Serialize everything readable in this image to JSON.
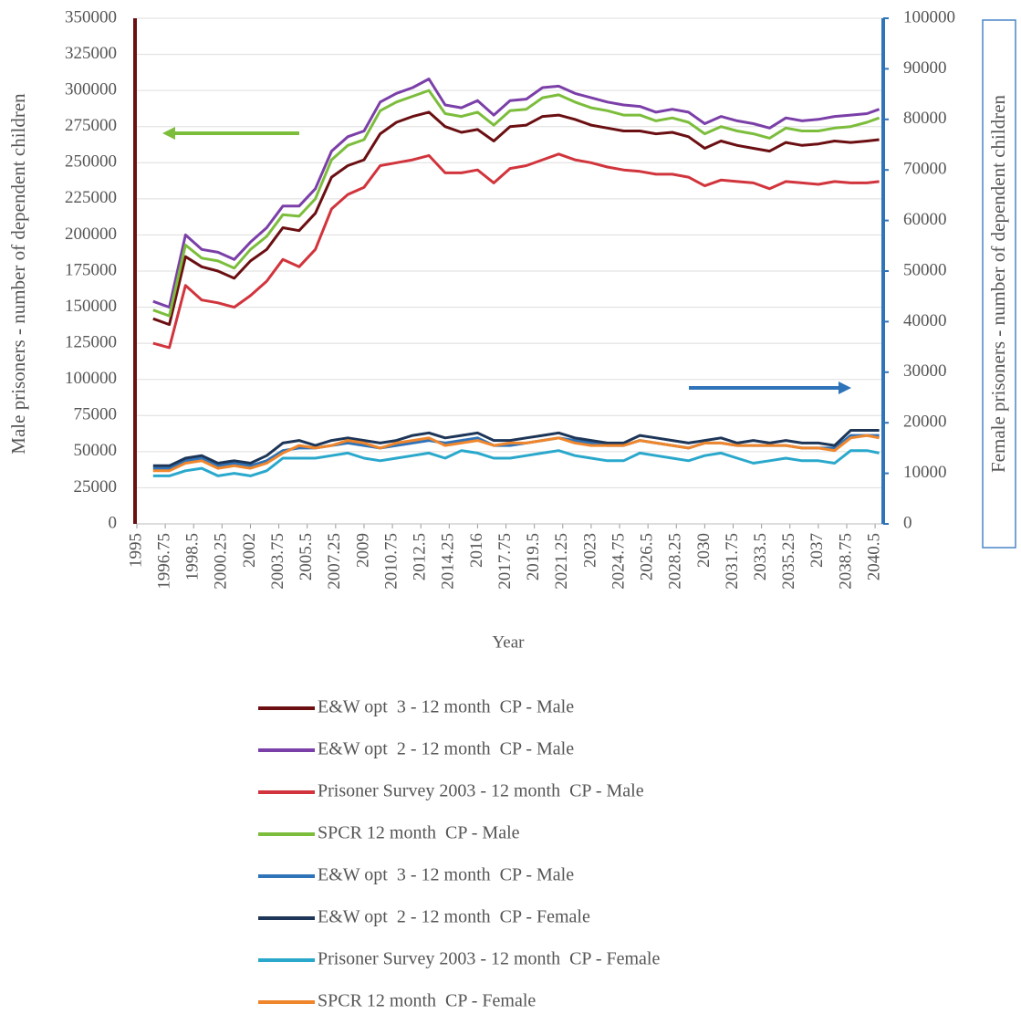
{
  "chart_data": {
    "type": "line",
    "xlabel": "Year",
    "ylabel": "Male prisoners - number of dependent children",
    "y2label": "Female prisoners - number of dependent children",
    "xlim": [
      1995,
      2041
    ],
    "xticks": [
      1995,
      1996.75,
      1998.5,
      2000.25,
      2002,
      2003.75,
      2005.5,
      2007.25,
      2009,
      2010.75,
      2012.5,
      2014.25,
      2016,
      2017.75,
      2019.5,
      2021.25,
      2023,
      2024.75,
      2026.5,
      2028.25,
      2030,
      2031.75,
      2033.5,
      2035.25,
      2037,
      2038.75,
      2040.5
    ],
    "ylim": [
      0,
      350000
    ],
    "yticks": [
      0,
      25000,
      50000,
      75000,
      100000,
      125000,
      150000,
      175000,
      200000,
      225000,
      250000,
      275000,
      300000,
      325000,
      350000
    ],
    "y2lim": [
      0,
      100000
    ],
    "y2ticks": [
      0,
      10000,
      20000,
      30000,
      40000,
      50000,
      60000,
      70000,
      80000,
      90000,
      100000
    ],
    "grid": true,
    "x": [
      1996,
      1997,
      1998,
      1999,
      2000,
      2001,
      2002,
      2003,
      2004,
      2005,
      2006,
      2007,
      2008,
      2009,
      2010,
      2011,
      2012,
      2013,
      2014,
      2015,
      2016,
      2017,
      2018,
      2019,
      2020,
      2021,
      2022,
      2023,
      2024,
      2025,
      2026,
      2027,
      2028,
      2029,
      2030,
      2031,
      2032,
      2033,
      2034,
      2035,
      2036,
      2037,
      2038,
      2039,
      2040,
      2040.75
    ],
    "series": [
      {
        "name": "E&W opt  3 - 12 month  CP - Male",
        "color": "#6b0f12",
        "values": [
          142000,
          138000,
          185000,
          178000,
          175000,
          170000,
          182000,
          190000,
          205000,
          203000,
          215000,
          240000,
          248000,
          252000,
          270000,
          278000,
          282000,
          285000,
          275000,
          271000,
          273000,
          265000,
          275000,
          276000,
          282000,
          283000,
          280000,
          276000,
          274000,
          272000,
          272000,
          270000,
          271000,
          268000,
          260000,
          265000,
          262000,
          260000,
          258000,
          264000,
          262000,
          263000,
          265000,
          264000,
          265000,
          266000
        ]
      },
      {
        "name": "E&W opt  2 - 12 month  CP - Male",
        "color": "#7b3fa8",
        "values": [
          154000,
          150000,
          200000,
          190000,
          188000,
          183000,
          195000,
          205000,
          220000,
          220000,
          232000,
          258000,
          268000,
          272000,
          292000,
          298000,
          302000,
          308000,
          290000,
          288000,
          293000,
          283000,
          293000,
          294000,
          302000,
          303000,
          298000,
          295000,
          292000,
          290000,
          289000,
          285000,
          287000,
          285000,
          277000,
          282000,
          279000,
          277000,
          274000,
          281000,
          279000,
          280000,
          282000,
          283000,
          284000,
          287000
        ]
      },
      {
        "name": "Prisoner Survey 2003 - 12 month  CP - Male",
        "color": "#d1343c",
        "values": [
          125000,
          122000,
          165000,
          155000,
          153000,
          150000,
          158000,
          168000,
          183000,
          178000,
          190000,
          218000,
          228000,
          233000,
          248000,
          250000,
          252000,
          255000,
          243000,
          243000,
          245000,
          236000,
          246000,
          248000,
          252000,
          256000,
          252000,
          250000,
          247000,
          245000,
          244000,
          242000,
          242000,
          240000,
          234000,
          238000,
          237000,
          236000,
          232000,
          237000,
          236000,
          235000,
          237000,
          236000,
          236000,
          237000
        ]
      },
      {
        "name": "SPCR 12 month  CP - Male",
        "color": "#7cbd3c",
        "values": [
          148000,
          144000,
          193000,
          184000,
          182000,
          177000,
          190000,
          199000,
          214000,
          213000,
          225000,
          252000,
          262000,
          266000,
          286000,
          292000,
          296000,
          300000,
          284000,
          282000,
          285000,
          276000,
          286000,
          287000,
          295000,
          297000,
          292000,
          288000,
          286000,
          283000,
          283000,
          279000,
          281000,
          278000,
          270000,
          275000,
          272000,
          270000,
          267000,
          274000,
          272000,
          272000,
          274000,
          275000,
          278000,
          281000
        ]
      },
      {
        "name": "E&W opt  3 - 12 month  CP - Male",
        "color": "#2f73b8",
        "axis": "y2",
        "values": [
          11000,
          11000,
          12500,
          13000,
          11500,
          12000,
          11500,
          12500,
          14500,
          15000,
          15000,
          15500,
          16000,
          15500,
          15000,
          15500,
          16000,
          16500,
          16000,
          16500,
          17000,
          15500,
          15500,
          16000,
          16500,
          17000,
          16500,
          16000,
          15500,
          15500,
          16500,
          16000,
          15500,
          15000,
          16000,
          16000,
          15500,
          15500,
          15500,
          15500,
          15000,
          15000,
          15000,
          17500,
          17500,
          17500
        ]
      },
      {
        "name": "E&W opt  2 - 12 month  CP - Female",
        "color": "#1d3557",
        "axis": "y2",
        "values": [
          11500,
          11500,
          13000,
          13500,
          12000,
          12500,
          12000,
          13500,
          16000,
          16500,
          15500,
          16500,
          17000,
          16500,
          16000,
          16500,
          17500,
          18000,
          17000,
          17500,
          18000,
          16500,
          16500,
          17000,
          17500,
          18000,
          17000,
          16500,
          16000,
          16000,
          17500,
          17000,
          16500,
          16000,
          16500,
          17000,
          16000,
          16500,
          16000,
          16500,
          16000,
          16000,
          15500,
          18500,
          18500,
          18500
        ]
      },
      {
        "name": "Prisoner Survey 2003 - 12 month  CP - Female",
        "color": "#2aa8cc",
        "axis": "y2",
        "values": [
          9500,
          9500,
          10500,
          11000,
          9500,
          10000,
          9500,
          10500,
          13000,
          13000,
          13000,
          13500,
          14000,
          13000,
          12500,
          13000,
          13500,
          14000,
          13000,
          14500,
          14000,
          13000,
          13000,
          13500,
          14000,
          14500,
          13500,
          13000,
          12500,
          12500,
          14000,
          13500,
          13000,
          12500,
          13500,
          14000,
          13000,
          12000,
          12500,
          13000,
          12500,
          12500,
          12000,
          14500,
          14500,
          14000
        ]
      },
      {
        "name": "SPCR 12 month  CP - Female",
        "color": "#f0862c",
        "axis": "y2",
        "values": [
          10500,
          10500,
          12000,
          12500,
          11000,
          11500,
          11000,
          12000,
          14000,
          15500,
          15000,
          15500,
          16500,
          16000,
          15000,
          16000,
          16500,
          17000,
          15500,
          16000,
          16500,
          15500,
          16000,
          16000,
          16500,
          17000,
          16000,
          15500,
          15500,
          15500,
          16500,
          16000,
          15500,
          15000,
          16000,
          16000,
          15500,
          15500,
          15500,
          15500,
          15000,
          15000,
          14500,
          17000,
          17500,
          17000
        ]
      }
    ]
  }
}
